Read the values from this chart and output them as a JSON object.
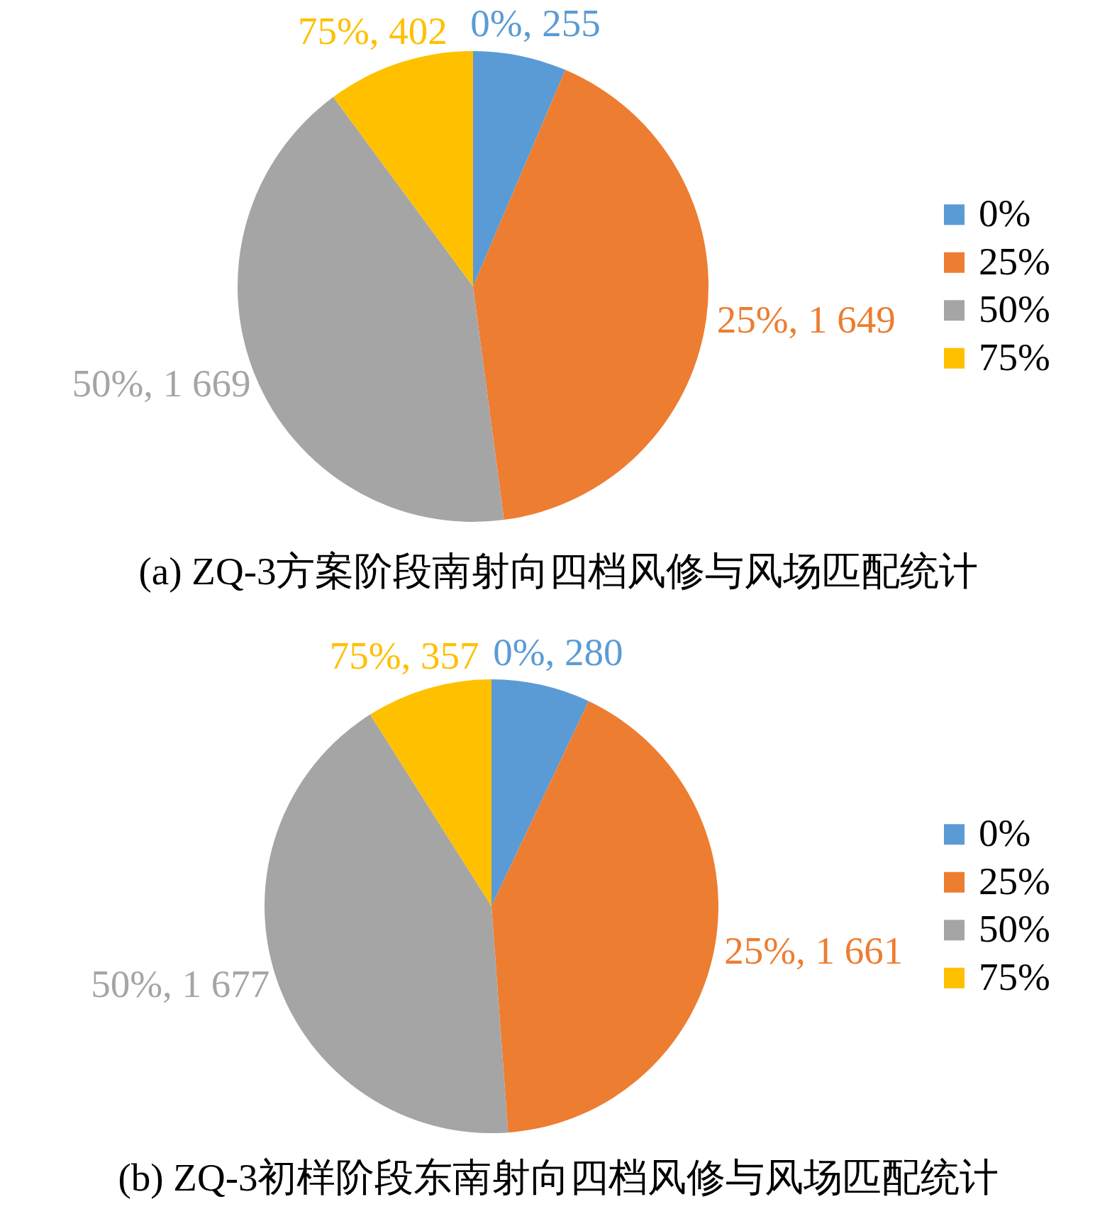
{
  "chart_data": [
    {
      "type": "pie",
      "title": "(a) ZQ-3方案阶段南射向四档风修与风场匹配统计",
      "categories": [
        "0%",
        "25%",
        "50%",
        "75%"
      ],
      "values": [
        255,
        1649,
        1669,
        402
      ],
      "colors": [
        "#5b9bd5",
        "#ed7d31",
        "#a5a5a5",
        "#ffc000"
      ],
      "value_labels": [
        "0%, 255",
        "25%, 1 649",
        "50%, 1 669",
        "75%, 402"
      ],
      "legend": "right"
    },
    {
      "type": "pie",
      "title": "(b) ZQ-3初样阶段东南射向四档风修与风场匹配统计",
      "categories": [
        "0%",
        "25%",
        "50%",
        "75%"
      ],
      "values": [
        280,
        1661,
        1677,
        357
      ],
      "colors": [
        "#5b9bd5",
        "#ed7d31",
        "#a5a5a5",
        "#ffc000"
      ],
      "value_labels": [
        "0%, 280",
        "25%, 1 661",
        "50%, 1 677",
        "75%, 357"
      ],
      "legend": "right"
    }
  ]
}
